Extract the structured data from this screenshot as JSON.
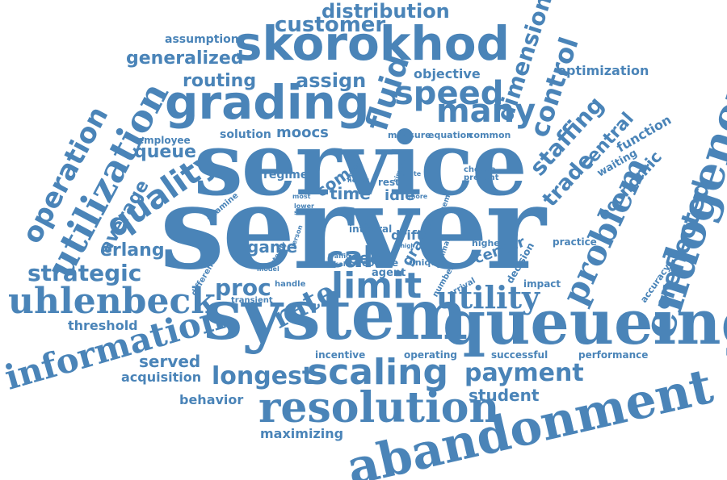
{
  "word_cloud": {
    "color": "#4a84b8",
    "words": {
      "server": "server",
      "service": "service",
      "system": "system",
      "queueing": "queueing",
      "abandonment": "abandonment",
      "skorokhod": "skorokhod",
      "grading": "grading",
      "endogenous": "endogenous",
      "resolution": "resolution",
      "scaling": "scaling",
      "information": "information",
      "uhlenbeck": "uhlenbeck",
      "utilization": "utilization",
      "limit": "limit",
      "problem": "problem",
      "utility": "utility",
      "quality": "quality",
      "speed": "speed",
      "many": "many",
      "fluid": "fluid",
      "control": "control",
      "dimension": "dimension",
      "operation": "operation",
      "longest": "longest",
      "payment": "payment",
      "rate": "rate",
      "call": "call",
      "proc": "proc",
      "reflected": "reflected",
      "customer": "customer",
      "distribution": "distribution",
      "assign": "assign",
      "routing": "routing",
      "generalized": "generalized",
      "assumption": "assumption",
      "staffing": "staffing",
      "trade": "trade",
      "central": "central",
      "economic": "economic",
      "function": "function",
      "waiting": "waiting",
      "optimization": "optimization",
      "objective": "objective",
      "strategic": "strategic",
      "erlang": "erlang",
      "average": "average",
      "queue": "queue",
      "employee": "employee",
      "solution": "solution",
      "moocs": "moocs",
      "measure": "measure",
      "equation": "equation",
      "common": "common",
      "regime": "regime",
      "come": "come",
      "time": "time",
      "idle": "idle",
      "result": "result",
      "game": "game",
      "peer": "peer",
      "agent": "agent",
      "course": "course",
      "integral": "integral",
      "drift": "drift",
      "grader": "grader",
      "center": "center",
      "decision": "decision",
      "higher": "higher",
      "practice": "practice",
      "impact": "impact",
      "accuracy": "accuracy",
      "threshold": "threshold",
      "served": "served",
      "acquisition": "acquisition",
      "behavior": "behavior",
      "maximizing": "maximizing",
      "student": "student",
      "incentive": "incentive",
      "operating": "operating",
      "successful": "successful",
      "performance": "performance",
      "transient": "transient",
      "handle": "handle",
      "different": "different",
      "examine": "examine",
      "choose": "choose",
      "present": "present",
      "policy": "policy",
      "heavy": "heavy",
      "simple": "simple",
      "state": "state",
      "more": "more",
      "scheme": "scheme",
      "unique": "unique",
      "optimal": "optimal",
      "number": "number",
      "arrival": "arrival",
      "person": "person",
      "steady": "steady",
      "traffic": "traffic",
      "scale": "scale",
      "model": "model",
      "lower": "lower",
      "solve": "solve",
      "most": "most",
      "allo": "allo",
      "high": "high"
    }
  }
}
